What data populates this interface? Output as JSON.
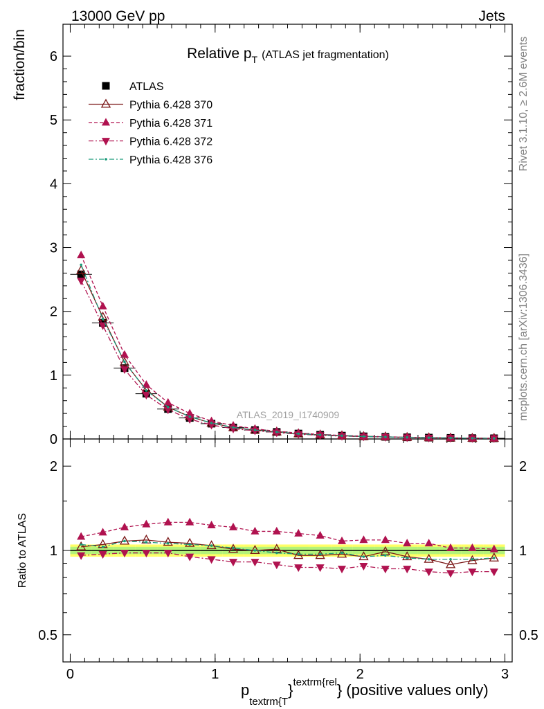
{
  "header": {
    "left": "13000 GeV pp",
    "right": "Jets"
  },
  "side_labels": {
    "rivet": "Rivet 3.1.10, ≥ 2.6M events",
    "mcplots": "mcplots.cern.ch [arXiv:1306.3436]"
  },
  "watermark": "ATLAS_2019_I1740909",
  "chart_data": [
    {
      "type": "line",
      "panel": "main",
      "title_main": "Relative p",
      "title_sub": "T",
      "title_rest": "(ATLAS jet fragmentation)",
      "ylabel": "fraction/bin",
      "xlim": [
        -0.05,
        3.05
      ],
      "ylim": [
        0,
        6.5
      ],
      "yticks": [
        0,
        1,
        2,
        3,
        4,
        5,
        6
      ],
      "x": [
        0.075,
        0.225,
        0.375,
        0.525,
        0.675,
        0.825,
        0.975,
        1.125,
        1.275,
        1.425,
        1.575,
        1.725,
        1.875,
        2.025,
        2.175,
        2.325,
        2.475,
        2.625,
        2.775,
        2.925
      ],
      "legend_position": "top-left",
      "series": [
        {
          "name": "ATLAS",
          "color": "#000000",
          "marker": "square",
          "line": "none",
          "values": [
            2.58,
            1.82,
            1.11,
            0.71,
            0.47,
            0.33,
            0.24,
            0.18,
            0.14,
            0.11,
            0.085,
            0.066,
            0.052,
            0.041,
            0.033,
            0.026,
            0.021,
            0.017,
            0.013,
            0.011
          ]
        },
        {
          "name": "Pythia 6.428 370",
          "color": "#7a1515",
          "marker": "triangle-up-open",
          "line": "solid",
          "values": [
            2.64,
            1.91,
            1.2,
            0.77,
            0.5,
            0.35,
            0.25,
            0.18,
            0.14,
            0.11,
            0.082,
            0.064,
            0.051,
            0.039,
            0.033,
            0.025,
            0.02,
            0.015,
            0.012,
            0.01
          ]
        },
        {
          "name": "Pythia 6.428 371",
          "color": "#b0124f",
          "marker": "triangle-up",
          "line": "dashed",
          "values": [
            2.88,
            2.08,
            1.32,
            0.85,
            0.57,
            0.4,
            0.28,
            0.21,
            0.16,
            0.12,
            0.094,
            0.071,
            0.055,
            0.044,
            0.035,
            0.027,
            0.022,
            0.017,
            0.013,
            0.011
          ]
        },
        {
          "name": "Pythia 6.428 372",
          "color": "#b0124f",
          "marker": "triangle-down",
          "line": "dashdot",
          "values": [
            2.48,
            1.78,
            1.09,
            0.69,
            0.46,
            0.31,
            0.22,
            0.16,
            0.13,
            0.1,
            0.075,
            0.058,
            0.045,
            0.037,
            0.029,
            0.023,
            0.018,
            0.014,
            0.011,
            0.0095
          ]
        },
        {
          "name": "Pythia 6.428 376",
          "color": "#1a9a7a",
          "marker": "dot",
          "line": "dashdot",
          "values": [
            2.73,
            1.88,
            1.21,
            0.76,
            0.5,
            0.35,
            0.25,
            0.18,
            0.14,
            0.11,
            0.082,
            0.065,
            0.051,
            0.039,
            0.032,
            0.025,
            0.02,
            0.016,
            0.012,
            0.01
          ]
        }
      ]
    },
    {
      "type": "line",
      "panel": "ratio",
      "ylabel": "Ratio to ATLAS",
      "xlabel_main": "p",
      "xlabel_sub": "textrm{T",
      "xlabel_brace": "}",
      "xlabel_sup": "textrm{rel",
      "xlabel_rest": "} (positive values only)",
      "xlim": [
        -0.05,
        3.05
      ],
      "xticks": [
        0,
        1,
        2,
        3
      ],
      "ylim": [
        0.4,
        2.5
      ],
      "log_y": true,
      "yticks": [
        0.5,
        1,
        2
      ],
      "band_colors": [
        "#ffff66",
        "#b3f27a"
      ],
      "band_outer": [
        0.05,
        0.05,
        0.05,
        0.05,
        0.05,
        0.05,
        0.05,
        0.05,
        0.05,
        0.05,
        0.05,
        0.05,
        0.05,
        0.05,
        0.05,
        0.05,
        0.05,
        0.05,
        0.05,
        0.05
      ],
      "band_inner": [
        0.03,
        0.03,
        0.03,
        0.03,
        0.03,
        0.03,
        0.03,
        0.03,
        0.03,
        0.03,
        0.03,
        0.03,
        0.03,
        0.03,
        0.03,
        0.03,
        0.03,
        0.03,
        0.03,
        0.03
      ],
      "x": [
        0.075,
        0.225,
        0.375,
        0.525,
        0.675,
        0.825,
        0.975,
        1.125,
        1.275,
        1.425,
        1.575,
        1.725,
        1.875,
        2.025,
        2.175,
        2.325,
        2.475,
        2.625,
        2.775,
        2.925
      ],
      "series": [
        {
          "name": "Pythia 6.428 370",
          "color": "#7a1515",
          "marker": "triangle-up-open",
          "line": "solid",
          "values": [
            1.03,
            1.05,
            1.08,
            1.09,
            1.07,
            1.06,
            1.04,
            1.01,
            1.0,
            1.01,
            0.96,
            0.96,
            0.97,
            0.95,
            0.99,
            0.95,
            0.93,
            0.89,
            0.92,
            0.94
          ]
        },
        {
          "name": "Pythia 6.428 371",
          "color": "#b0124f",
          "marker": "triangle-up",
          "line": "dashed",
          "values": [
            1.12,
            1.16,
            1.21,
            1.24,
            1.26,
            1.26,
            1.23,
            1.21,
            1.17,
            1.17,
            1.15,
            1.13,
            1.08,
            1.09,
            1.09,
            1.06,
            1.06,
            1.02,
            1.02,
            1.01
          ]
        },
        {
          "name": "Pythia 6.428 372",
          "color": "#b0124f",
          "marker": "triangle-down",
          "line": "dashdot",
          "values": [
            0.96,
            0.97,
            0.98,
            0.98,
            0.98,
            0.95,
            0.93,
            0.91,
            0.91,
            0.89,
            0.87,
            0.87,
            0.86,
            0.88,
            0.86,
            0.86,
            0.84,
            0.83,
            0.84,
            0.84
          ]
        },
        {
          "name": "Pythia 6.428 376",
          "color": "#1a9a7a",
          "marker": "dot",
          "line": "dashdot",
          "values": [
            1.05,
            1.03,
            1.08,
            1.07,
            1.06,
            1.05,
            1.04,
            1.02,
            1.0,
            0.98,
            0.97,
            0.97,
            0.98,
            0.95,
            0.96,
            0.94,
            0.93,
            0.93,
            0.93,
            0.94
          ]
        }
      ]
    }
  ]
}
